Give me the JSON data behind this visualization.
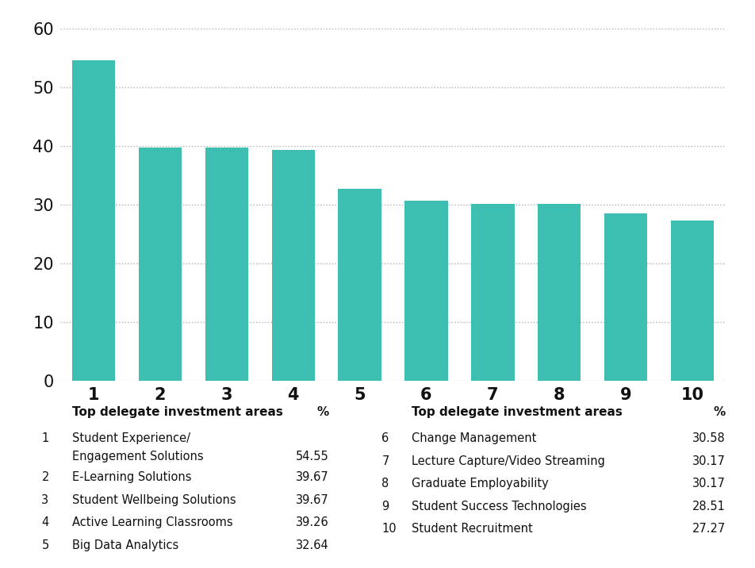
{
  "categories": [
    "1",
    "2",
    "3",
    "4",
    "5",
    "6",
    "7",
    "8",
    "9",
    "10"
  ],
  "values": [
    54.55,
    39.67,
    39.67,
    39.26,
    32.64,
    30.58,
    30.17,
    30.17,
    28.51,
    27.27
  ],
  "bar_color": "#3cbfb0",
  "ylim": [
    0,
    60
  ],
  "yticks": [
    0,
    10,
    20,
    30,
    40,
    50,
    60
  ],
  "background_color": "#ffffff",
  "grid_color": "#b0b0b0",
  "tick_fontsize": 15,
  "left_table_header": "Top delegate investment areas",
  "right_table_header": "Top delegate investment areas",
  "pct_header": "%",
  "left_items": [
    [
      "1",
      "Student Experience/",
      "Engagement Solutions",
      "54.55"
    ],
    [
      "2",
      "E-Learning Solutions",
      "",
      "39.67"
    ],
    [
      "3",
      "Student Wellbeing Solutions",
      "",
      "39.67"
    ],
    [
      "4",
      "Active Learning Classrooms",
      "",
      "39.26"
    ],
    [
      "5",
      "Big Data Analytics",
      "",
      "32.64"
    ]
  ],
  "right_items": [
    [
      "6",
      "Change Management",
      "30.58"
    ],
    [
      "7",
      "Lecture Capture/Video Streaming",
      "30.17"
    ],
    [
      "8",
      "Graduate Employability",
      "30.17"
    ],
    [
      "9",
      "Student Success Technologies",
      "28.51"
    ],
    [
      "10",
      "Student Recruitment",
      "27.27"
    ]
  ]
}
